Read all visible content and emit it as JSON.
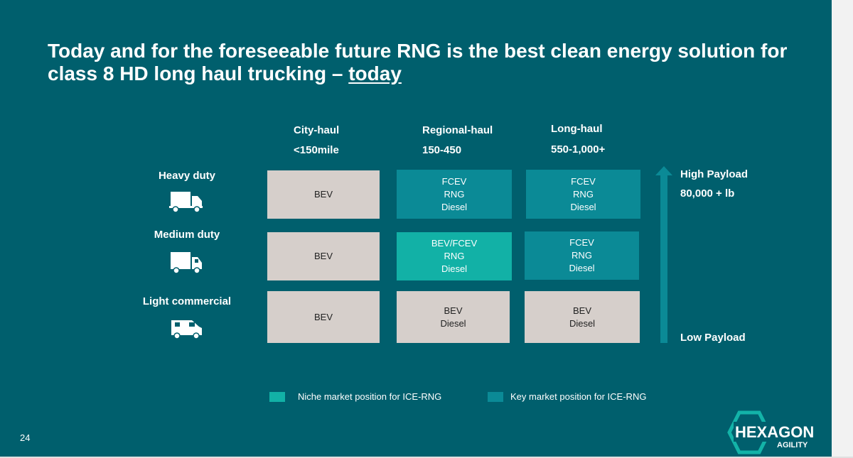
{
  "slide": {
    "title_main": "Today and for the foreseeable future RNG is the best clean energy solution for class 8 HD long haul trucking – ",
    "title_underlined": "today",
    "page_number": "24",
    "logo_text": "HEXAGON",
    "logo_subtext": "AGILITY"
  },
  "columns": [
    {
      "name": "City-haul",
      "range": "<150mile"
    },
    {
      "name": "Regional-haul",
      "range": "150-450"
    },
    {
      "name": "Long-haul",
      "range": "550-1,000+"
    }
  ],
  "rows": [
    {
      "label": "Heavy duty",
      "icon": "semi-truck-icon"
    },
    {
      "label": "Medium duty",
      "icon": "box-truck-icon"
    },
    {
      "label": "Light commercial",
      "icon": "van-icon"
    }
  ],
  "cells": [
    [
      {
        "lines": [
          "BEV"
        ],
        "type": "grey"
      },
      {
        "lines": [
          "FCEV",
          "RNG",
          "Diesel"
        ],
        "type": "key"
      },
      {
        "lines": [
          "FCEV",
          "RNG",
          "Diesel"
        ],
        "type": "key"
      }
    ],
    [
      {
        "lines": [
          "BEV"
        ],
        "type": "grey"
      },
      {
        "lines": [
          "BEV/FCEV",
          "RNG",
          "Diesel"
        ],
        "type": "niche"
      },
      {
        "lines": [
          "FCEV",
          "RNG",
          "Diesel"
        ],
        "type": "key"
      }
    ],
    [
      {
        "lines": [
          "BEV"
        ],
        "type": "grey"
      },
      {
        "lines": [
          "BEV",
          "Diesel"
        ],
        "type": "grey"
      },
      {
        "lines": [
          "BEV",
          "Diesel"
        ],
        "type": "grey"
      }
    ]
  ],
  "payload": {
    "high_label": "High Payload",
    "high_value": "80,000 + lb",
    "low_label": "Low Payload"
  },
  "legend": {
    "niche": "Niche market position for ICE-RNG",
    "key": "Key market position for ICE-RNG"
  },
  "colors": {
    "background": "#005f6d",
    "grey_cell": "#d6cfcb",
    "key_cell": "#0b8a96",
    "niche_cell": "#12b1a6",
    "arrow": "#0b8a96"
  }
}
